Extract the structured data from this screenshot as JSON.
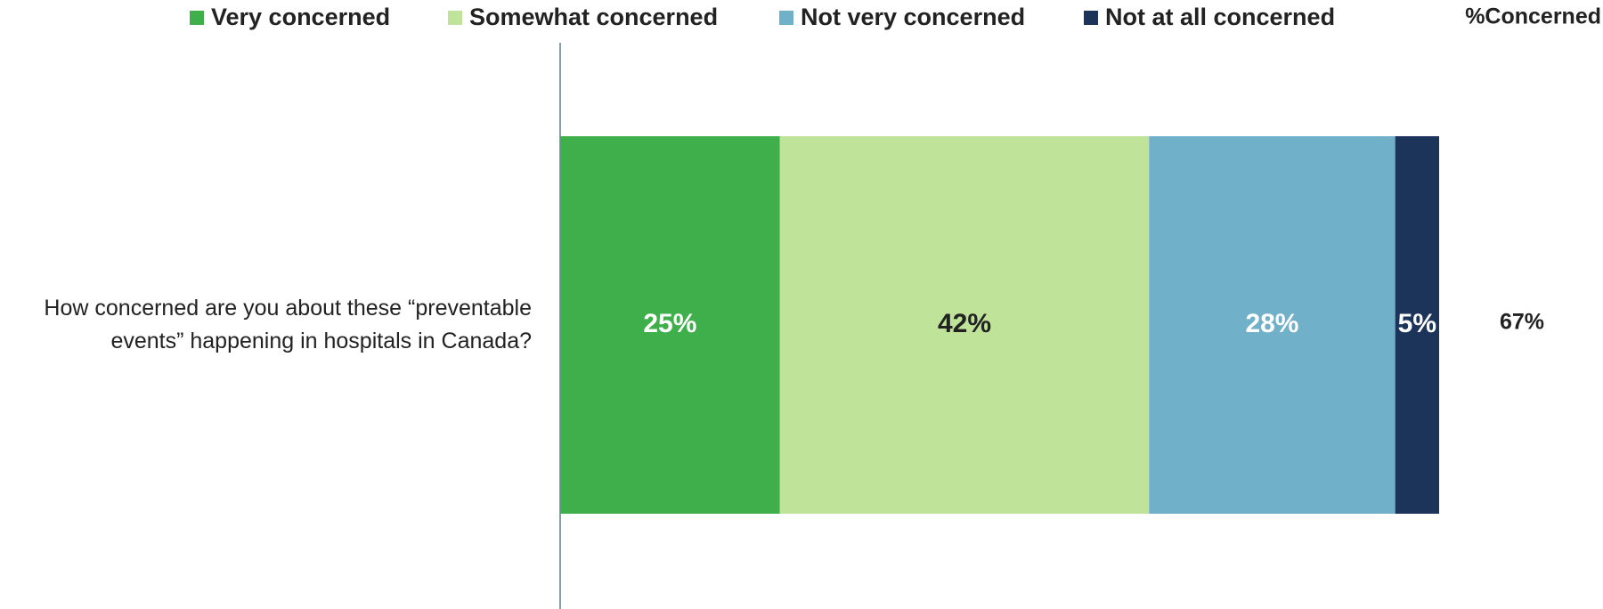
{
  "chart_data": {
    "type": "stacked-bar",
    "categories": [
      "How concerned are you about these “preventable events” happening in hospitals in Canada?"
    ],
    "series": [
      {
        "name": "Very concerned",
        "color": "#3faf4b",
        "label_color": "#ffffff",
        "values": [
          25
        ],
        "value_labels": [
          "25%"
        ]
      },
      {
        "name": "Somewhat concerned",
        "color": "#c0e39a",
        "label_color": "#222222",
        "values": [
          42
        ],
        "value_labels": [
          "42%"
        ]
      },
      {
        "name": "Not very concerned",
        "color": "#70b0c9",
        "label_color": "#ffffff",
        "values": [
          28
        ],
        "value_labels": [
          "28%"
        ]
      },
      {
        "name": "Not at all concerned",
        "color": "#1c3459",
        "label_color": "#ffffff",
        "values": [
          5
        ],
        "value_labels": [
          "5%"
        ]
      }
    ],
    "summary_title": "%Concerned",
    "summary_values": [
      67
    ],
    "summary_value_labels": [
      "67%"
    ]
  }
}
